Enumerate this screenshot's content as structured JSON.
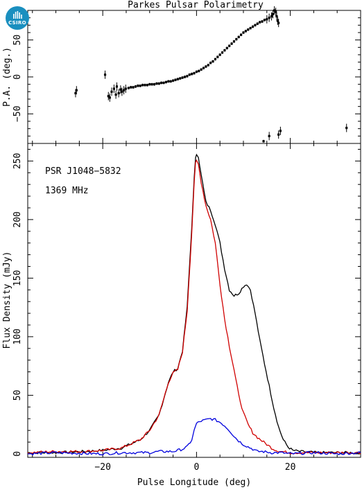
{
  "logo": {
    "text": "CSIRO",
    "color": "#1a8fbf"
  },
  "chart_data": [
    {
      "panel": "polarization-angle",
      "type": "scatter",
      "title": "Parkes Pulsar Polarimetry",
      "ylabel": "P.A. (deg.)",
      "xlim": [
        -36,
        35
      ],
      "ylim": [
        -90,
        90
      ],
      "yticks": [
        -50,
        0,
        50
      ],
      "points": [
        [
          -25.8,
          -22
        ],
        [
          -25.6,
          -18
        ],
        [
          -19.5,
          3
        ],
        [
          -18.8,
          -26
        ],
        [
          -18.5,
          -28
        ],
        [
          -18.1,
          -20
        ],
        [
          -17.6,
          -16
        ],
        [
          -17.2,
          -24
        ],
        [
          -17.0,
          -13
        ],
        [
          -16.6,
          -22
        ],
        [
          -16.2,
          -17
        ],
        [
          -15.9,
          -20
        ],
        [
          -15.5,
          -18
        ],
        [
          -15.1,
          -16
        ],
        [
          -14.5,
          -15
        ],
        [
          -14.0,
          -14
        ],
        [
          -13.5,
          -14
        ],
        [
          -13.0,
          -13
        ],
        [
          -12.5,
          -12
        ],
        [
          -12.0,
          -12
        ],
        [
          -11.5,
          -11
        ],
        [
          -11.0,
          -11
        ],
        [
          -10.5,
          -11
        ],
        [
          -10.0,
          -10
        ],
        [
          -9.5,
          -10
        ],
        [
          -9.0,
          -10
        ],
        [
          -8.5,
          -9
        ],
        [
          -8.0,
          -9
        ],
        [
          -7.5,
          -8
        ],
        [
          -7.0,
          -8
        ],
        [
          -6.5,
          -7
        ],
        [
          -6.0,
          -6
        ],
        [
          -5.5,
          -6
        ],
        [
          -5.0,
          -5
        ],
        [
          -4.5,
          -4
        ],
        [
          -4.0,
          -3
        ],
        [
          -3.5,
          -2
        ],
        [
          -3.0,
          -1
        ],
        [
          -2.5,
          0
        ],
        [
          -2.0,
          1
        ],
        [
          -1.5,
          3
        ],
        [
          -1.0,
          4
        ],
        [
          -0.5,
          5
        ],
        [
          0.0,
          7
        ],
        [
          0.5,
          8
        ],
        [
          1.0,
          10
        ],
        [
          1.5,
          12
        ],
        [
          2.0,
          14
        ],
        [
          2.5,
          16
        ],
        [
          3.0,
          19
        ],
        [
          3.5,
          21
        ],
        [
          4.0,
          24
        ],
        [
          4.5,
          27
        ],
        [
          5.0,
          30
        ],
        [
          5.5,
          33
        ],
        [
          6.0,
          36
        ],
        [
          6.5,
          39
        ],
        [
          7.0,
          42
        ],
        [
          7.5,
          45
        ],
        [
          8.0,
          48
        ],
        [
          8.5,
          51
        ],
        [
          9.0,
          54
        ],
        [
          9.5,
          57
        ],
        [
          10.0,
          60
        ],
        [
          10.5,
          62
        ],
        [
          11.0,
          64
        ],
        [
          11.5,
          66
        ],
        [
          12.0,
          68
        ],
        [
          12.5,
          70
        ],
        [
          13.0,
          72
        ],
        [
          13.5,
          74
        ],
        [
          14.0,
          75
        ],
        [
          14.5,
          77
        ],
        [
          15.0,
          78
        ],
        [
          15.5,
          80
        ],
        [
          16.0,
          82
        ],
        [
          16.3,
          85
        ],
        [
          16.6,
          90
        ],
        [
          16.9,
          88
        ],
        [
          17.1,
          82
        ],
        [
          17.3,
          76
        ],
        [
          17.5,
          73
        ],
        [
          14.3,
          -87
        ],
        [
          15.5,
          -80
        ],
        [
          17.5,
          -78
        ],
        [
          17.9,
          -73
        ],
        [
          32.0,
          -69
        ]
      ]
    },
    {
      "panel": "flux-profile",
      "type": "line",
      "xlabel": "Pulse Longitude (deg)",
      "ylabel": "Flux Density (mJy)",
      "xlim": [
        -36,
        35
      ],
      "ylim": [
        -3,
        265
      ],
      "xticks": [
        -20,
        0,
        20
      ],
      "yticks": [
        0,
        50,
        100,
        150,
        200,
        250
      ],
      "annotations": [
        "PSR J1048−5832",
        "1369 MHz"
      ],
      "series": [
        {
          "color": "#000000",
          "points": [
            [
              -36,
              1
            ],
            [
              -30,
              1
            ],
            [
              -24,
              2
            ],
            [
              -20,
              3
            ],
            [
              -16,
              5
            ],
            [
              -12,
              12
            ],
            [
              -10,
              20
            ],
            [
              -8,
              33
            ],
            [
              -7,
              47
            ],
            [
              -6,
              61
            ],
            [
              -5,
              70
            ],
            [
              -4,
              73
            ],
            [
              -3,
              88
            ],
            [
              -2,
              125
            ],
            [
              -1,
              195
            ],
            [
              -0.5,
              235
            ],
            [
              -0.2,
              252
            ],
            [
              0,
              256
            ],
            [
              0.4,
              254
            ],
            [
              1,
              238
            ],
            [
              2,
              215
            ],
            [
              3,
              208
            ],
            [
              4,
              196
            ],
            [
              5,
              180
            ],
            [
              6,
              158
            ],
            [
              7,
              140
            ],
            [
              8,
              135
            ],
            [
              9,
              137
            ],
            [
              10,
              143
            ],
            [
              10.7,
              145
            ],
            [
              11.5,
              140
            ],
            [
              12.5,
              120
            ],
            [
              13.5,
              97
            ],
            [
              14.5,
              77
            ],
            [
              15.5,
              58
            ],
            [
              16.5,
              39
            ],
            [
              17.5,
              23
            ],
            [
              18.5,
              12
            ],
            [
              19.5,
              6
            ],
            [
              20.5,
              3
            ],
            [
              22,
              2
            ],
            [
              26,
              1
            ],
            [
              30,
              1
            ],
            [
              35,
              1
            ]
          ]
        },
        {
          "color": "#d00000",
          "points": [
            [
              -36,
              1
            ],
            [
              -30,
              2
            ],
            [
              -24,
              2
            ],
            [
              -20,
              3
            ],
            [
              -16,
              5
            ],
            [
              -12,
              12
            ],
            [
              -10,
              20
            ],
            [
              -8,
              33
            ],
            [
              -7,
              47
            ],
            [
              -6,
              61
            ],
            [
              -5,
              69
            ],
            [
              -4,
              72
            ],
            [
              -3,
              87
            ],
            [
              -2,
              122
            ],
            [
              -1,
              190
            ],
            [
              -0.5,
              232
            ],
            [
              -0.2,
              248
            ],
            [
              0,
              250
            ],
            [
              0.4,
              247
            ],
            [
              1,
              232
            ],
            [
              2,
              212
            ],
            [
              3,
              200
            ],
            [
              4,
              180
            ],
            [
              5,
              145
            ],
            [
              6,
              115
            ],
            [
              7,
              92
            ],
            [
              8,
              72
            ],
            [
              9,
              50
            ],
            [
              10,
              35
            ],
            [
              11,
              25
            ],
            [
              12,
              18
            ],
            [
              13,
              14
            ],
            [
              14,
              11
            ],
            [
              15,
              8
            ],
            [
              16,
              5
            ],
            [
              17,
              3
            ],
            [
              18,
              2
            ],
            [
              20,
              1
            ],
            [
              24,
              1
            ],
            [
              30,
              1
            ],
            [
              35,
              1
            ]
          ]
        },
        {
          "color": "#0000dd",
          "points": [
            [
              -36,
              0
            ],
            [
              -30,
              1
            ],
            [
              -20,
              0
            ],
            [
              -16,
              1
            ],
            [
              -12,
              1
            ],
            [
              -10,
              1
            ],
            [
              -8,
              2
            ],
            [
              -6,
              2
            ],
            [
              -5,
              2
            ],
            [
              -4,
              3
            ],
            [
              -3,
              4
            ],
            [
              -2,
              6
            ],
            [
              -1,
              12
            ],
            [
              -0.5,
              20
            ],
            [
              0,
              26
            ],
            [
              1,
              28
            ],
            [
              2,
              29
            ],
            [
              3,
              30
            ],
            [
              4,
              29
            ],
            [
              5,
              27
            ],
            [
              6,
              24
            ],
            [
              7,
              20
            ],
            [
              8,
              15
            ],
            [
              9,
              11
            ],
            [
              10,
              8
            ],
            [
              11,
              6
            ],
            [
              12,
              4
            ],
            [
              13,
              2
            ],
            [
              14,
              2
            ],
            [
              16,
              1
            ],
            [
              18,
              1
            ],
            [
              20,
              0
            ],
            [
              25,
              1
            ],
            [
              30,
              0
            ],
            [
              35,
              1
            ]
          ]
        }
      ]
    }
  ]
}
